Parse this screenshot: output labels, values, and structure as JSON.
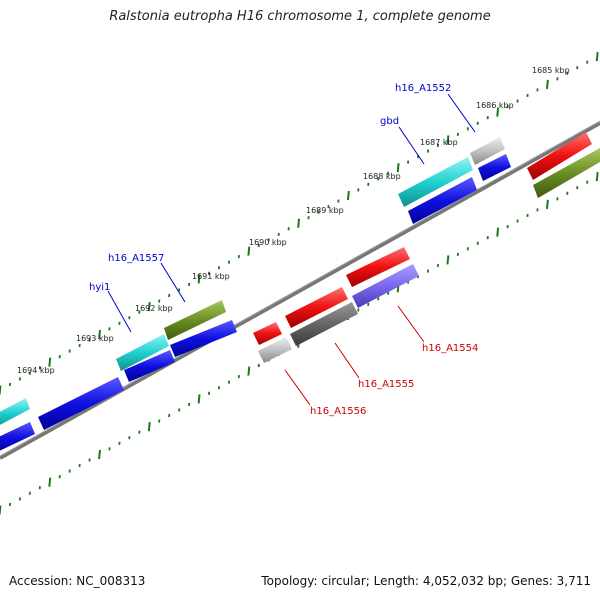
{
  "title": "Ralstonia eutropha H16 chromosome 1, complete genome",
  "footer": {
    "accession": "Accession: NC_008313",
    "summary": "Topology: circular; Length: 4,052,032 bp; Genes: 3,711"
  },
  "scale": {
    "unit": "kbp",
    "ticks": [
      "1685 kbp",
      "1686 kbp",
      "1687 kbp",
      "1688 kbp",
      "1689 kbp",
      "1690 kbp",
      "1691 kbp",
      "1692 kbp",
      "1693 kbp",
      "1694 kbp"
    ]
  },
  "gene_labels": {
    "forward_color": "#0000cc",
    "reverse_color": "#cc0000",
    "forward": [
      "h16_A1552",
      "gbd",
      "h16_A1557",
      "hyi1"
    ],
    "reverse": [
      "h16_A1554",
      "h16_A1555",
      "h16_A1556"
    ]
  },
  "colors": {
    "axis": "#777777",
    "tick": "#1a7a1a",
    "blue": "#1010e0",
    "cyan": "#22d0d0",
    "olive": "#6b8e23",
    "red": "#ee1111",
    "gray_dark": "#666666",
    "gray_light": "#c0c0c0",
    "purple": "#7b68ee"
  }
}
